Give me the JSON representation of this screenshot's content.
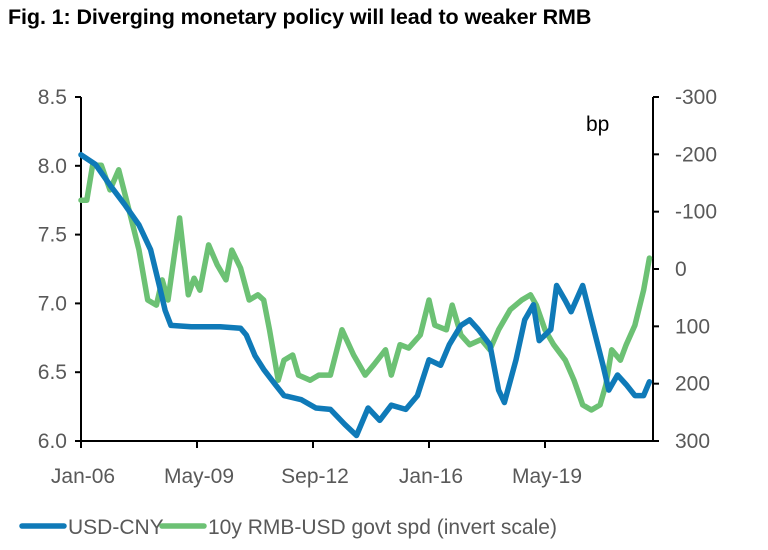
{
  "title": "Fig. 1: Diverging monetary policy will lead to weaker RMB",
  "chart_data": {
    "type": "line",
    "title": "Fig. 1: Diverging monetary policy will lead to weaker RMB",
    "x_start": "Jan-06",
    "x_unit": "months since Jan-06",
    "xlim": [
      0,
      204
    ],
    "x_ticks": [
      {
        "m": 0,
        "label": "Jan-06"
      },
      {
        "m": 40,
        "label": "May-09"
      },
      {
        "m": 80,
        "label": "Sep-12"
      },
      {
        "m": 120,
        "label": "Jan-16"
      },
      {
        "m": 160,
        "label": "May-19"
      }
    ],
    "y_left": {
      "ylim": [
        6.0,
        8.5
      ],
      "ticks": [
        "6.0",
        "6.5",
        "7.0",
        "7.5",
        "8.0",
        "8.5"
      ],
      "tick_values": [
        6.0,
        6.5,
        7.0,
        7.5,
        8.0,
        8.5
      ]
    },
    "y_right": {
      "ylim": [
        -300,
        300
      ],
      "inverted": true,
      "unit_label": "bp",
      "ticks": [
        "-300",
        "-200",
        "-100",
        "0",
        "100",
        "200",
        "300"
      ],
      "tick_values": [
        -300,
        -200,
        -100,
        0,
        100,
        200,
        300
      ]
    },
    "grid": false,
    "legend_position": "bottom",
    "series": [
      {
        "name": "USD-CNY",
        "axis": "left",
        "color": "#0F7AB8",
        "x": [
          0,
          5,
          10,
          15,
          20,
          24,
          27,
          29,
          31,
          38,
          48,
          55,
          57,
          60,
          63,
          67,
          70,
          76,
          81,
          86,
          91,
          95,
          99,
          103,
          107,
          112,
          116,
          120,
          124,
          127,
          131,
          134,
          137,
          141,
          144,
          146,
          150,
          153,
          156,
          158,
          162,
          164,
          167,
          169,
          173,
          176,
          180,
          182,
          185,
          188,
          191,
          194,
          196
        ],
        "values": [
          8.08,
          8.01,
          7.86,
          7.72,
          7.57,
          7.39,
          7.13,
          6.95,
          6.84,
          6.83,
          6.83,
          6.82,
          6.77,
          6.62,
          6.52,
          6.41,
          6.33,
          6.3,
          6.24,
          6.23,
          6.12,
          6.04,
          6.24,
          6.15,
          6.26,
          6.23,
          6.33,
          6.59,
          6.55,
          6.7,
          6.84,
          6.88,
          6.81,
          6.7,
          6.37,
          6.28,
          6.59,
          6.88,
          6.99,
          6.73,
          6.81,
          7.13,
          7.02,
          6.94,
          7.13,
          6.88,
          6.55,
          6.37,
          6.48,
          6.41,
          6.33,
          6.33,
          6.43
        ]
      },
      {
        "name": "10y RMB-USD govt spd (invert scale)",
        "axis": "right",
        "color": "#6CC174",
        "x": [
          0,
          2,
          4,
          7,
          10,
          13,
          17,
          20,
          23,
          26,
          28,
          30,
          34,
          37,
          39,
          41,
          44,
          47,
          50,
          52,
          55,
          58,
          61,
          63,
          65,
          68,
          70,
          73,
          75,
          79,
          82,
          86,
          90,
          94,
          98,
          101,
          105,
          107,
          110,
          113,
          117,
          120,
          122,
          126,
          128,
          131,
          134,
          138,
          141,
          144,
          148,
          152,
          155,
          157,
          160,
          163,
          167,
          170,
          173,
          176,
          179,
          181,
          183,
          186,
          188,
          191,
          194,
          196
        ],
        "values": [
          -120,
          -120,
          -181,
          -181,
          -138,
          -173,
          -94,
          -33,
          54,
          63,
          19,
          54,
          -89,
          45,
          16,
          37,
          -42,
          -7,
          19,
          -33,
          -2,
          54,
          45,
          54,
          106,
          194,
          159,
          150,
          185,
          194,
          185,
          185,
          106,
          150,
          185,
          167,
          141,
          185,
          132,
          138,
          115,
          54,
          98,
          106,
          63,
          115,
          132,
          123,
          141,
          106,
          71,
          54,
          45,
          63,
          106,
          132,
          159,
          194,
          237,
          246,
          237,
          202,
          141,
          159,
          132,
          98,
          37,
          -19
        ]
      }
    ]
  },
  "legend": [
    {
      "label": "USD-CNY",
      "color": "#0F7AB8"
    },
    {
      "label": "10y RMB-USD govt spd (invert scale)",
      "color": "#6CC174"
    }
  ]
}
